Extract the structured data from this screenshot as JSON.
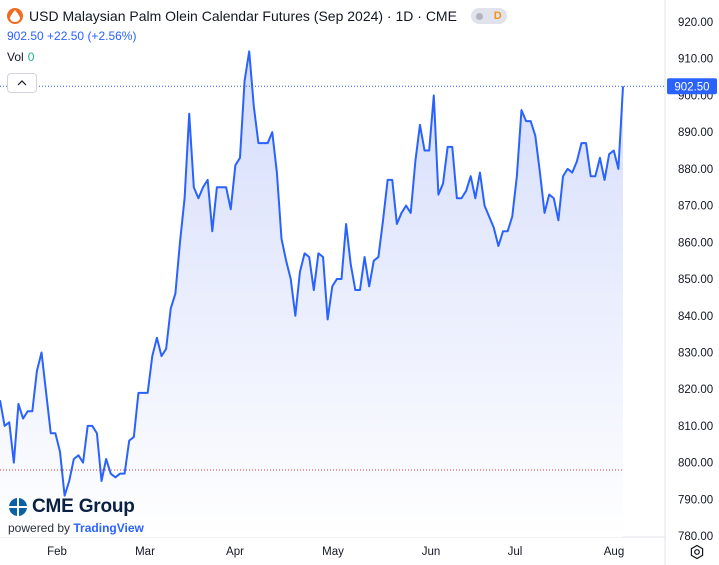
{
  "header": {
    "title": "USD Malaysian Palm Olein Calendar Futures (Sep 2024) · 1D · CME",
    "last": "902.50",
    "change": "+22.50",
    "change_pct": "(+2.56%)",
    "vol_label": "Vol",
    "vol_value": "0",
    "market_status": "D",
    "logo_icon": "cme-drop-icon",
    "status_icon": "market-status-icon"
  },
  "branding": {
    "name": "CME Group",
    "powered_prefix": "powered by",
    "powered_name": "TradingView"
  },
  "colors": {
    "line": "#2962ff",
    "area_top": "#d4dcfb",
    "area_bottom": "#ffffff",
    "price_label_bg": "#2962ff",
    "baseline_dots": "#e53935"
  },
  "chart_data": {
    "type": "area",
    "title": "USD Malaysian Palm Olein Calendar Futures (Sep 2024) · 1D · CME",
    "xlabel": "",
    "ylabel": "",
    "ylim": [
      780,
      922
    ],
    "grid": false,
    "x_ticks": [
      "Feb",
      "Mar",
      "Apr",
      "May",
      "Jun",
      "Jul",
      "Aug"
    ],
    "y_ticks": [
      "780.00",
      "790.00",
      "800.00",
      "810.00",
      "820.00",
      "830.00",
      "840.00",
      "850.00",
      "860.00",
      "870.00",
      "880.00",
      "890.00",
      "900.00",
      "910.00",
      "920.00"
    ],
    "last_price_label": "902.50",
    "last_price": 902.5,
    "reference_price": 798,
    "series": [
      {
        "values": [
          817,
          810,
          811,
          800,
          816,
          812,
          814,
          814,
          825,
          830,
          819,
          808,
          808,
          803,
          791,
          795,
          801,
          802,
          800,
          810,
          810,
          808,
          795,
          801,
          797,
          796,
          797,
          797,
          806,
          807,
          819,
          819,
          819,
          829,
          834,
          829,
          831,
          842,
          846,
          860,
          872,
          895,
          875,
          872,
          875,
          877,
          863,
          875,
          875,
          875,
          869,
          881,
          883,
          904,
          912,
          897,
          887,
          887,
          887,
          890,
          879,
          861,
          855,
          850,
          840,
          852,
          857,
          856,
          847,
          857,
          856,
          839,
          848,
          850,
          850,
          865,
          854,
          847,
          847,
          856,
          848,
          855,
          856,
          866,
          877,
          877,
          865,
          868,
          870,
          868,
          882,
          892,
          885,
          885,
          900,
          873,
          876,
          886,
          886,
          872,
          872,
          874,
          878,
          872,
          879,
          870,
          867,
          864,
          859,
          863,
          863,
          867,
          878,
          896,
          893,
          893,
          889,
          879,
          868,
          873,
          872,
          866,
          878,
          880,
          879,
          882,
          887,
          887,
          878,
          878,
          883,
          877,
          884,
          885,
          880,
          902.5
        ]
      }
    ]
  }
}
